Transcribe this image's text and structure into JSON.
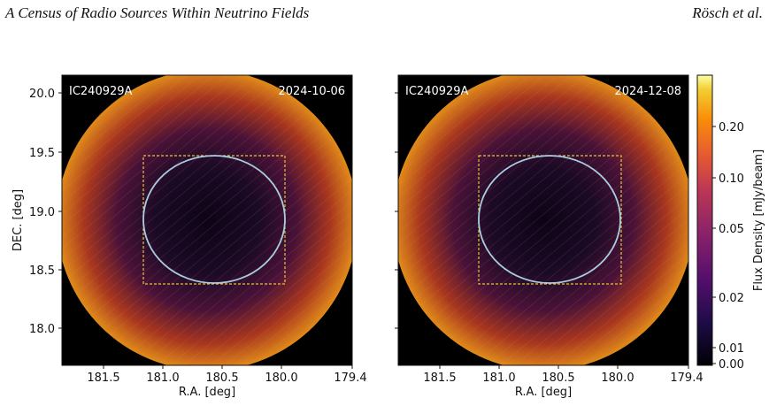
{
  "header": {
    "title": "A Census of Radio Sources Within Neutrino Fields",
    "authors": "Rösch et al."
  },
  "panels": [
    {
      "source": "IC240929A",
      "date": "2024-10-06"
    },
    {
      "source": "IC240929A",
      "date": "2024-12-08"
    }
  ],
  "axes": {
    "xlabel": "R.A. [deg]",
    "ylabel": "DEC. [deg]",
    "x_ticks": [
      "181.5",
      "181.0",
      "180.5",
      "180.0",
      "179.4"
    ],
    "y_ticks": [
      "20.0",
      "19.5",
      "19.0",
      "18.5",
      "18.0"
    ]
  },
  "colorbar": {
    "label": "Flux Density [mJy/beam]",
    "colormap": "inferno",
    "ticks": [
      "0.20",
      "0.10",
      "0.05",
      "0.02",
      "0.01",
      "0.00"
    ]
  },
  "colors": {
    "ellipse": "#a8cde0",
    "box": "#e8c23a"
  }
}
